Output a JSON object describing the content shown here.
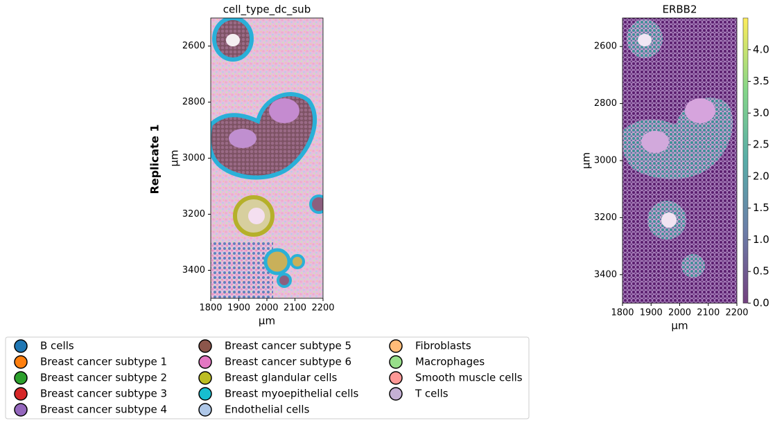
{
  "row_label": "Replicate 1",
  "chart_data": [
    {
      "type": "scatter",
      "title": "cell_type_dc_sub",
      "xlabel": "µm",
      "ylabel": "µm",
      "xlim": [
        1800,
        2200
      ],
      "xticks": [
        1800,
        1900,
        2000,
        2100,
        2200
      ],
      "ylim": [
        3500,
        2500
      ],
      "yticks": [
        2600,
        2800,
        3000,
        3200,
        3400
      ],
      "legend": "below",
      "series": [
        {
          "name": "B cells",
          "color": "#1f77b4"
        },
        {
          "name": "Breast cancer subtype 1",
          "color": "#ff7f0e"
        },
        {
          "name": "Breast cancer subtype 2",
          "color": "#2ca02c"
        },
        {
          "name": "Breast cancer subtype 3",
          "color": "#d62728"
        },
        {
          "name": "Breast cancer subtype 4",
          "color": "#9467bd"
        },
        {
          "name": "Breast cancer subtype 5",
          "color": "#8c564b"
        },
        {
          "name": "Breast cancer subtype 6",
          "color": "#e377c2"
        },
        {
          "name": "Breast glandular cells",
          "color": "#bcbd22"
        },
        {
          "name": "Breast myoepithelial cells",
          "color": "#17becf"
        },
        {
          "name": "Endothelial cells",
          "color": "#aec7e8"
        },
        {
          "name": "Fibroblasts",
          "color": "#ffbb78"
        },
        {
          "name": "Macrophages",
          "color": "#98df8a"
        },
        {
          "name": "Smooth muscle cells",
          "color": "#ff9896"
        },
        {
          "name": "T cells",
          "color": "#c5b0d5"
        }
      ]
    },
    {
      "type": "scatter",
      "title": "ERBB2",
      "xlabel": "µm",
      "ylabel": "µm",
      "xlim": [
        1800,
        2200
      ],
      "xticks": [
        1800,
        1900,
        2000,
        2100,
        2200
      ],
      "ylim": [
        3500,
        2500
      ],
      "yticks": [
        2600,
        2800,
        3000,
        3200,
        3400
      ],
      "colormap": [
        "#440154",
        "#3b528b",
        "#21918c",
        "#5ec962",
        "#fde725"
      ],
      "clim": [
        0,
        4.5
      ],
      "cticks": [
        {
          "value": 0,
          "label": "0.0"
        },
        {
          "value": 0.5,
          "label": "0.5"
        },
        {
          "value": 1,
          "label": "1.0"
        },
        {
          "value": 1.5,
          "label": "1.5"
        },
        {
          "value": 2,
          "label": "2.0"
        },
        {
          "value": 2.5,
          "label": "2.5"
        },
        {
          "value": 3,
          "label": "3.0"
        },
        {
          "value": 3.5,
          "label": "3.5"
        },
        {
          "value": 4,
          "label": "4.0"
        }
      ]
    }
  ]
}
